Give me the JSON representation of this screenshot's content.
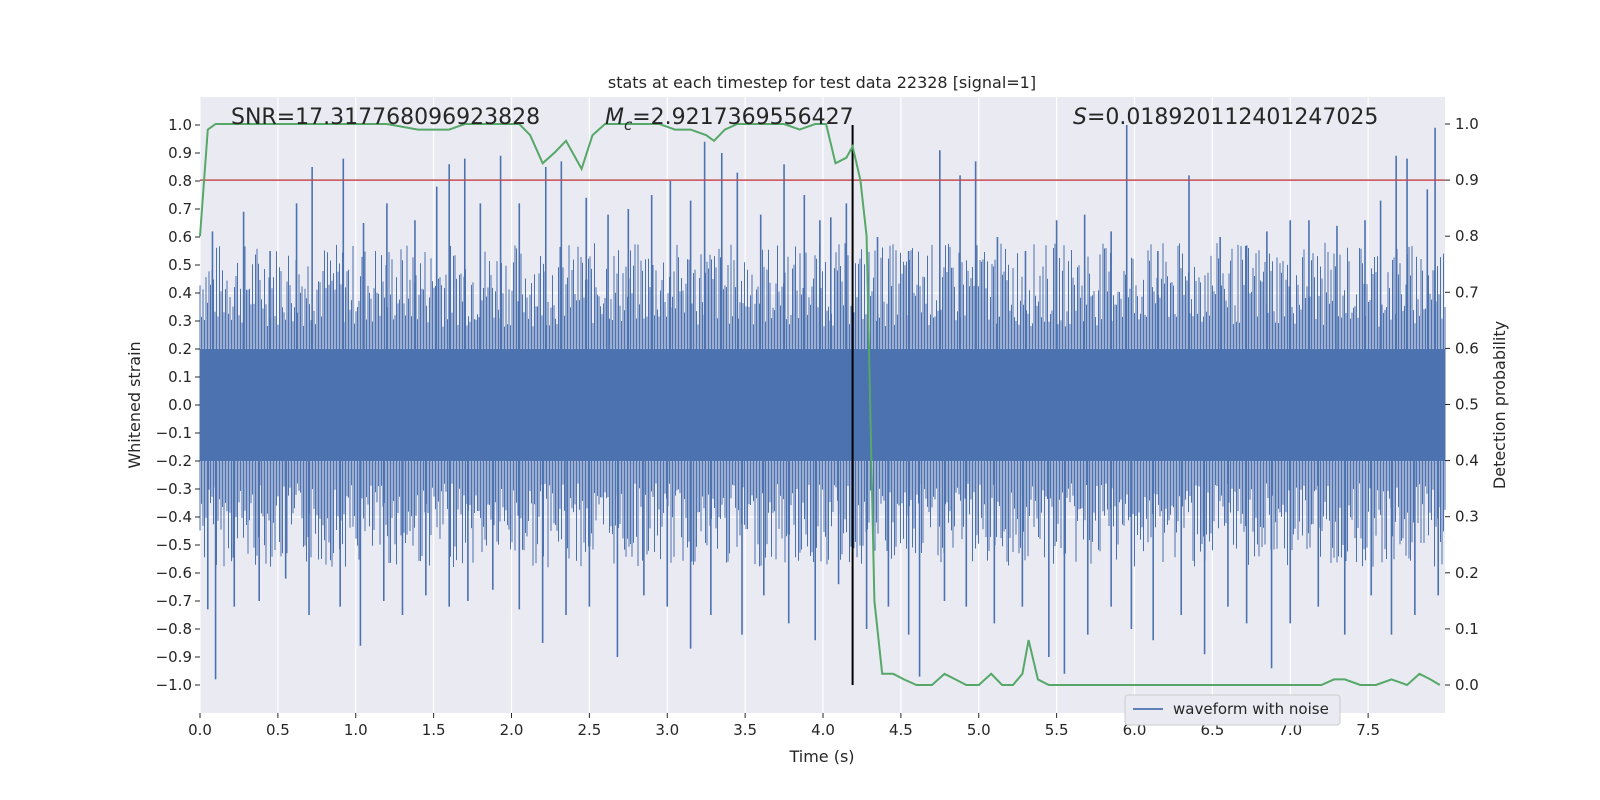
{
  "chart_data": {
    "type": "line",
    "title": "stats at each timestep for test data 22328 [signal=1]",
    "xlabel": "Time (s)",
    "ylabel": "Whitened strain",
    "y2label": "Detection probability",
    "xlim": [
      0.0,
      7.98
    ],
    "ylim": [
      -1.1,
      1.1
    ],
    "y2lim": [
      -0.05,
      1.05
    ],
    "xticks": [
      0.0,
      0.5,
      1.0,
      1.5,
      2.0,
      2.5,
      3.0,
      3.5,
      4.0,
      4.5,
      5.0,
      5.5,
      6.0,
      6.5,
      7.0,
      7.5
    ],
    "xtick_labels": [
      "0.0",
      "0.5",
      "1.0",
      "1.5",
      "2.0",
      "2.5",
      "3.0",
      "3.5",
      "4.0",
      "4.5",
      "5.0",
      "5.5",
      "6.0",
      "6.5",
      "7.0",
      "7.5"
    ],
    "yticks": [
      1.0,
      0.9,
      0.8,
      0.7,
      0.6,
      0.5,
      0.4,
      0.3,
      0.2,
      0.1,
      0.0,
      -0.1,
      -0.2,
      -0.3,
      -0.4,
      -0.5,
      -0.6,
      -0.7,
      -0.8,
      -0.9,
      -1.0
    ],
    "ytick_labels": [
      "1.0",
      "0.9",
      "0.8",
      "0.7",
      "0.6",
      "0.5",
      "0.4",
      "0.3",
      "0.2",
      "0.1",
      "0.0",
      "−0.1",
      "−0.2",
      "−0.3",
      "−0.4",
      "−0.5",
      "−0.6",
      "−0.7",
      "−0.8",
      "−0.9",
      "−1.0"
    ],
    "y2ticks": [
      1.0,
      0.9,
      0.8,
      0.7,
      0.6,
      0.5,
      0.4,
      0.3,
      0.2,
      0.1,
      0.0
    ],
    "y2tick_labels": [
      "1.0",
      "0.9",
      "0.8",
      "0.7",
      "0.6",
      "0.5",
      "0.4",
      "0.3",
      "0.2",
      "0.1",
      "0.0"
    ],
    "annotations": {
      "snr": "SNR=17.317768096923828",
      "mc_symbol": "M",
      "mc_sub": "c",
      "mc_value": "=2.9217369556427",
      "s_symbol": "S",
      "s_value": "=0.018920112401247025"
    },
    "legend": {
      "label": "waveform with noise",
      "position": "lower-right"
    },
    "threshold_line": {
      "y2": 0.9,
      "color": "#c44e52"
    },
    "marker_line": {
      "x": 4.19,
      "color": "#000000"
    },
    "waveform": {
      "name": "waveform with noise",
      "color": "#4c72b0",
      "band_top": 0.2,
      "band_bottom": -0.2,
      "positive_peaks": [
        [
          0.08,
          0.62
        ],
        [
          0.28,
          0.69
        ],
        [
          0.45,
          0.55
        ],
        [
          0.62,
          0.72
        ],
        [
          0.72,
          0.85
        ],
        [
          0.92,
          0.88
        ],
        [
          1.05,
          0.65
        ],
        [
          1.2,
          0.72
        ],
        [
          1.38,
          0.66
        ],
        [
          1.52,
          0.78
        ],
        [
          1.6,
          0.86
        ],
        [
          1.7,
          0.88
        ],
        [
          1.8,
          0.72
        ],
        [
          1.93,
          0.89
        ],
        [
          2.05,
          0.72
        ],
        [
          2.22,
          0.85
        ],
        [
          2.32,
          0.87
        ],
        [
          2.48,
          0.74
        ],
        [
          2.62,
          0.68
        ],
        [
          2.75,
          0.7
        ],
        [
          2.9,
          0.75
        ],
        [
          3.02,
          0.8
        ],
        [
          3.15,
          0.73
        ],
        [
          3.24,
          0.94
        ],
        [
          3.35,
          0.9
        ],
        [
          3.45,
          0.83
        ],
        [
          3.6,
          0.68
        ],
        [
          3.75,
          0.86
        ],
        [
          3.88,
          0.75
        ],
        [
          3.98,
          0.66
        ],
        [
          4.05,
          0.67
        ],
        [
          4.15,
          0.72
        ],
        [
          4.35,
          0.6
        ],
        [
          4.55,
          0.55
        ],
        [
          4.75,
          0.91
        ],
        [
          4.88,
          0.82
        ],
        [
          4.98,
          0.87
        ],
        [
          5.12,
          0.6
        ],
        [
          5.3,
          0.55
        ],
        [
          5.5,
          0.66
        ],
        [
          5.68,
          0.68
        ],
        [
          5.85,
          0.62
        ],
        [
          5.95,
          1.0
        ],
        [
          6.15,
          0.55
        ],
        [
          6.35,
          0.82
        ],
        [
          6.55,
          0.6
        ],
        [
          6.72,
          0.57
        ],
        [
          6.85,
          0.62
        ],
        [
          7.0,
          0.66
        ],
        [
          7.12,
          0.66
        ],
        [
          7.3,
          0.64
        ],
        [
          7.48,
          0.66
        ],
        [
          7.58,
          0.73
        ],
        [
          7.68,
          0.89
        ],
        [
          7.75,
          0.88
        ],
        [
          7.88,
          0.77
        ],
        [
          7.93,
          0.99
        ]
      ],
      "negative_peaks": [
        [
          0.05,
          -0.73
        ],
        [
          0.1,
          -0.98
        ],
        [
          0.22,
          -0.72
        ],
        [
          0.38,
          -0.7
        ],
        [
          0.55,
          -0.62
        ],
        [
          0.7,
          -0.75
        ],
        [
          0.9,
          -0.72
        ],
        [
          1.03,
          -0.86
        ],
        [
          1.18,
          -0.7
        ],
        [
          1.3,
          -0.75
        ],
        [
          1.45,
          -0.68
        ],
        [
          1.6,
          -0.72
        ],
        [
          1.72,
          -0.7
        ],
        [
          1.88,
          -0.66
        ],
        [
          2.05,
          -0.73
        ],
        [
          2.2,
          -0.85
        ],
        [
          2.35,
          -0.75
        ],
        [
          2.5,
          -0.72
        ],
        [
          2.68,
          -0.9
        ],
        [
          2.85,
          -0.68
        ],
        [
          3.0,
          -0.72
        ],
        [
          3.15,
          -0.87
        ],
        [
          3.28,
          -0.75
        ],
        [
          3.48,
          -0.82
        ],
        [
          3.62,
          -0.68
        ],
        [
          3.78,
          -0.78
        ],
        [
          3.95,
          -0.84
        ],
        [
          4.1,
          -0.64
        ],
        [
          4.28,
          -0.8
        ],
        [
          4.42,
          -0.72
        ],
        [
          4.55,
          -0.82
        ],
        [
          4.62,
          -0.97
        ],
        [
          4.78,
          -0.7
        ],
        [
          4.92,
          -0.72
        ],
        [
          5.1,
          -0.78
        ],
        [
          5.28,
          -0.72
        ],
        [
          5.45,
          -0.9
        ],
        [
          5.55,
          -0.96
        ],
        [
          5.7,
          -0.82
        ],
        [
          5.85,
          -0.72
        ],
        [
          5.98,
          -0.8
        ],
        [
          6.12,
          -0.84
        ],
        [
          6.3,
          -0.75
        ],
        [
          6.45,
          -0.89
        ],
        [
          6.6,
          -0.72
        ],
        [
          6.72,
          -0.78
        ],
        [
          6.88,
          -0.94
        ],
        [
          7.0,
          -0.78
        ],
        [
          7.18,
          -0.72
        ],
        [
          7.35,
          -0.82
        ],
        [
          7.52,
          -0.68
        ],
        [
          7.65,
          -0.82
        ],
        [
          7.8,
          -0.75
        ],
        [
          7.95,
          -0.68
        ]
      ]
    },
    "detection_probability": {
      "color": "#55a868",
      "points": [
        [
          0.0,
          0.8
        ],
        [
          0.05,
          0.99
        ],
        [
          0.1,
          1.0
        ],
        [
          0.3,
          1.0
        ],
        [
          0.5,
          1.0
        ],
        [
          0.7,
          1.0
        ],
        [
          1.0,
          1.0
        ],
        [
          1.2,
          1.0
        ],
        [
          1.4,
          0.99
        ],
        [
          1.5,
          0.99
        ],
        [
          1.6,
          0.99
        ],
        [
          1.7,
          1.0
        ],
        [
          1.8,
          1.0
        ],
        [
          1.9,
          1.0
        ],
        [
          2.0,
          1.0
        ],
        [
          2.05,
          1.0
        ],
        [
          2.12,
          0.98
        ],
        [
          2.2,
          0.93
        ],
        [
          2.28,
          0.95
        ],
        [
          2.35,
          0.97
        ],
        [
          2.45,
          0.92
        ],
        [
          2.52,
          0.98
        ],
        [
          2.6,
          1.0
        ],
        [
          2.8,
          1.0
        ],
        [
          2.95,
          1.0
        ],
        [
          3.05,
          0.99
        ],
        [
          3.15,
          0.99
        ],
        [
          3.25,
          0.98
        ],
        [
          3.3,
          0.97
        ],
        [
          3.37,
          0.99
        ],
        [
          3.45,
          1.0
        ],
        [
          3.6,
          1.0
        ],
        [
          3.75,
          1.0
        ],
        [
          3.85,
          0.99
        ],
        [
          3.95,
          1.0
        ],
        [
          4.02,
          1.0
        ],
        [
          4.08,
          0.93
        ],
        [
          4.15,
          0.94
        ],
        [
          4.19,
          0.96
        ],
        [
          4.24,
          0.9
        ],
        [
          4.28,
          0.8
        ],
        [
          4.33,
          0.15
        ],
        [
          4.38,
          0.02
        ],
        [
          4.45,
          0.02
        ],
        [
          4.52,
          0.01
        ],
        [
          4.6,
          0.0
        ],
        [
          4.7,
          0.0
        ],
        [
          4.78,
          0.02
        ],
        [
          4.85,
          0.01
        ],
        [
          4.92,
          0.0
        ],
        [
          5.0,
          0.0
        ],
        [
          5.08,
          0.02
        ],
        [
          5.15,
          0.0
        ],
        [
          5.22,
          0.0
        ],
        [
          5.28,
          0.02
        ],
        [
          5.32,
          0.08
        ],
        [
          5.38,
          0.01
        ],
        [
          5.45,
          0.0
        ],
        [
          5.6,
          0.0
        ],
        [
          5.8,
          0.0
        ],
        [
          6.0,
          0.0
        ],
        [
          6.2,
          0.0
        ],
        [
          6.4,
          0.0
        ],
        [
          6.6,
          0.0
        ],
        [
          6.8,
          0.0
        ],
        [
          7.0,
          0.0
        ],
        [
          7.2,
          0.0
        ],
        [
          7.28,
          0.01
        ],
        [
          7.35,
          0.01
        ],
        [
          7.45,
          0.0
        ],
        [
          7.55,
          0.0
        ],
        [
          7.65,
          0.01
        ],
        [
          7.75,
          0.0
        ],
        [
          7.83,
          0.02
        ],
        [
          7.9,
          0.01
        ],
        [
          7.96,
          0.0
        ]
      ]
    }
  }
}
